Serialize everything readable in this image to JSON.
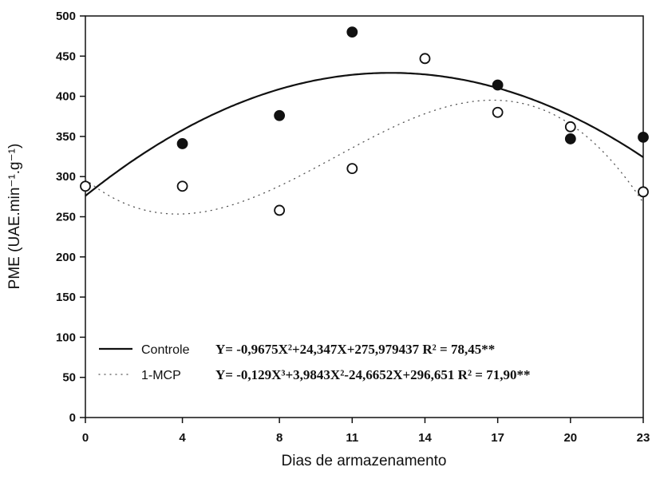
{
  "chart_data": {
    "type": "scatter",
    "xlabel": "Dias de armazenamento",
    "ylabel": "PME (UAE.min⁻¹.g⁻¹)",
    "xticks": [
      "0",
      "4",
      "8",
      "11",
      "14",
      "17",
      "20",
      "23"
    ],
    "yticks": [
      "0",
      "50",
      "100",
      "150",
      "200",
      "250",
      "300",
      "350",
      "400",
      "450",
      "500"
    ],
    "xlim": [
      0,
      23
    ],
    "ylim": [
      0,
      500
    ],
    "grid": false,
    "legend_position": "bottom-left",
    "series": [
      {
        "name": "Controle",
        "marker": "filled-circle",
        "line_style": "solid",
        "equation": "Y= -0,9675X²+24,347X+275,979437 R² = 78,45**",
        "coefficients": [
          275.979437,
          24.347,
          -0.9675,
          0
        ],
        "x": [
          4,
          8,
          11,
          17,
          20,
          23
        ],
        "y": [
          341,
          376,
          480,
          414,
          347,
          349
        ]
      },
      {
        "name": "1-MCP",
        "marker": "open-circle",
        "line_style": "dotted",
        "equation": "Y= -0,129X³+3,9843X²-24,6652X+296,651 R² = 71,90**",
        "coefficients": [
          296.651,
          -24.6652,
          3.9843,
          -0.129
        ],
        "x": [
          0,
          4,
          8,
          11,
          14,
          17,
          20,
          23
        ],
        "y": [
          288,
          288,
          258,
          310,
          447,
          380,
          362,
          281
        ]
      }
    ]
  }
}
